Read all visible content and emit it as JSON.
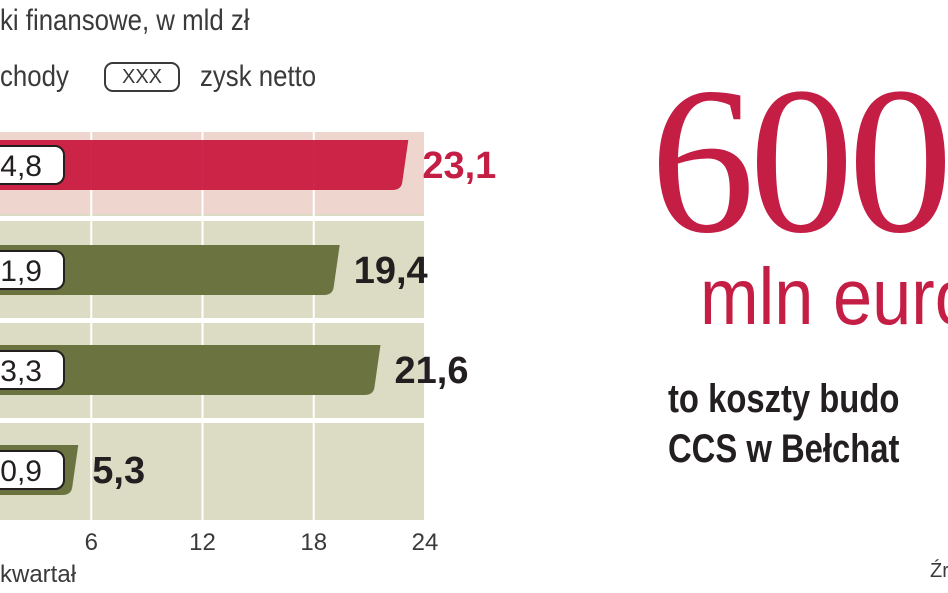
{
  "title": "ki finansowe, w mld zł",
  "legend": {
    "revenue_label": "chody",
    "box_label": "XXX",
    "profit_label": "zysk netto"
  },
  "colors": {
    "highlight_bar": "#c8153b",
    "bar": "#6b7440",
    "highlight_value": "#c41e45",
    "value": "#231f20",
    "plot_bg": "#dcdcc4"
  },
  "chart_data": {
    "type": "bar",
    "orientation": "horizontal",
    "xlim": [
      0,
      24
    ],
    "xticks": [
      "6",
      "12",
      "18",
      "24"
    ],
    "x_axis_note": "kwartał",
    "series": [
      {
        "values": [
          23.1,
          19.4,
          21.6,
          5.3
        ]
      },
      {
        "values": [
          "4,8",
          "1,9",
          "3,3",
          "0,9"
        ]
      }
    ],
    "value_labels": [
      "23,1",
      "19,4",
      "21,6",
      "5,3"
    ],
    "highlight_index": 0
  },
  "callout": {
    "number": "600",
    "unit": "mln euro",
    "line1": "to koszty budo",
    "line2": "CCS w Bełchat"
  },
  "source": "Źr"
}
